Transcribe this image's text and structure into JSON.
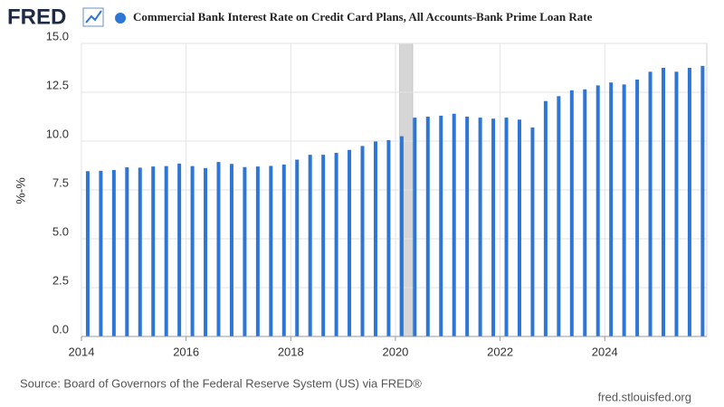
{
  "header": {
    "logo": "FRED"
  },
  "chart_data": {
    "type": "bar",
    "series": [
      {
        "name": "Commercial Bank Interest Rate on Credit Card Plans, All Accounts-Bank Prime Loan Rate",
        "color": "#2e76d6",
        "values": [
          8.46,
          8.48,
          8.52,
          8.66,
          8.64,
          8.7,
          8.72,
          8.85,
          8.72,
          8.62,
          8.93,
          8.83,
          8.67,
          8.7,
          8.73,
          8.8,
          9.05,
          9.3,
          9.3,
          9.4,
          9.55,
          9.75,
          9.98,
          10.05,
          10.25,
          11.2,
          11.25,
          11.3,
          11.4,
          11.25,
          11.2,
          11.15,
          11.2,
          11.1,
          10.7,
          12.05,
          12.3,
          12.6,
          12.65,
          12.85,
          13.0,
          12.9,
          13.15,
          13.55,
          13.75,
          13.55,
          13.75,
          13.85
        ]
      }
    ],
    "x": [
      2014.12,
      2014.37,
      2014.62,
      2014.87,
      2015.12,
      2015.37,
      2015.62,
      2015.87,
      2016.12,
      2016.37,
      2016.62,
      2016.87,
      2017.12,
      2017.37,
      2017.62,
      2017.87,
      2018.12,
      2018.37,
      2018.62,
      2018.87,
      2019.12,
      2019.37,
      2019.62,
      2019.87,
      2020.12,
      2020.37,
      2020.62,
      2020.87,
      2021.12,
      2021.37,
      2021.62,
      2021.87,
      2022.12,
      2022.37,
      2022.62,
      2022.87,
      2023.12,
      2023.37,
      2023.62,
      2023.87,
      2024.12,
      2024.37,
      2024.62,
      2024.87,
      2025.12,
      2025.37,
      2025.62,
      2025.87
    ],
    "xlim": [
      2014,
      2025.95
    ],
    "xticks": [
      2014,
      2016,
      2018,
      2020,
      2022,
      2024
    ],
    "ylim": [
      0,
      15
    ],
    "yticks": [
      {
        "value": 0,
        "label": "0.0"
      },
      {
        "value": 2.5,
        "label": "2.5"
      },
      {
        "value": 5,
        "label": "5.0"
      },
      {
        "value": 7.5,
        "label": "7.5"
      },
      {
        "value": 10,
        "label": "10.0"
      },
      {
        "value": 12.5,
        "label": "12.5"
      },
      {
        "value": 15,
        "label": "15.0"
      }
    ],
    "y_label": "%-%",
    "grid": true,
    "recession": [
      2020.08,
      2020.33
    ]
  },
  "footer": {
    "source": "Source: Board of Governors of the Federal Reserve System (US) via FRED®",
    "site": "fred.stlouisfed.org"
  }
}
